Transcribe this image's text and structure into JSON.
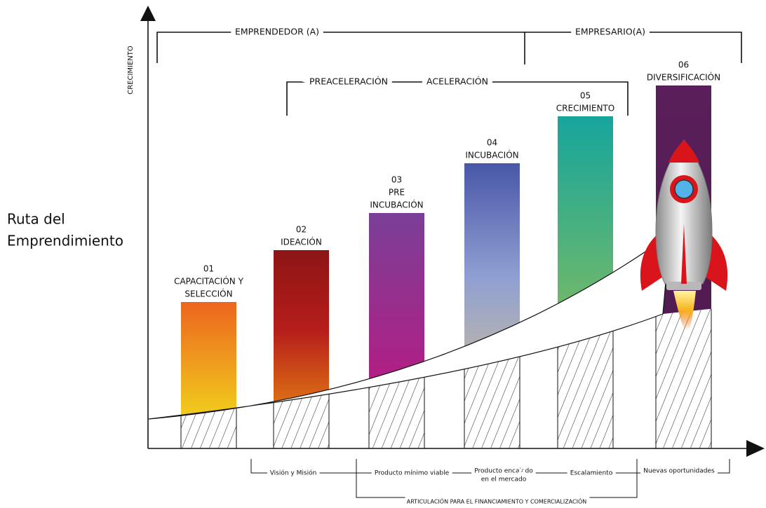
{
  "title": [
    "Ruta del",
    "Emprendimiento"
  ],
  "y_axis_label": "CRECIMIENTO",
  "top_brackets": {
    "emprendedor": "EMPRENDEDOR (A)",
    "empresario": "EMPRESARIO(A)"
  },
  "phase_brackets": {
    "preaceleracion": "PREACELERACIÓN",
    "aceleracion": "ACELERACIÓN"
  },
  "stages": [
    {
      "number": "01",
      "label": [
        "CAPACITACIÓN Y",
        "SELECCIÓN"
      ]
    },
    {
      "number": "02",
      "label": [
        "IDEACIÓN"
      ]
    },
    {
      "number": "03",
      "label": [
        "PRE",
        "INCUBACIÓN"
      ]
    },
    {
      "number": "04",
      "label": [
        "INCUBACIÓN"
      ]
    },
    {
      "number": "05",
      "label": [
        "CRECIMIENTO"
      ]
    },
    {
      "number": "06",
      "label": [
        "DIVERSIFICACIÓN"
      ]
    }
  ],
  "bottom_labels": {
    "vision": "Visión y Misión",
    "mvp": "Producto mínimo viable",
    "fit": [
      "Producto encajado",
      "en el mercado"
    ],
    "scale": "Escalamiento",
    "new": "Nuevas oportunidades",
    "articulation": "ARTICULACIÓN PARA EL FINANCIAMIENTO Y COMERCIALIZACIÓN"
  }
}
